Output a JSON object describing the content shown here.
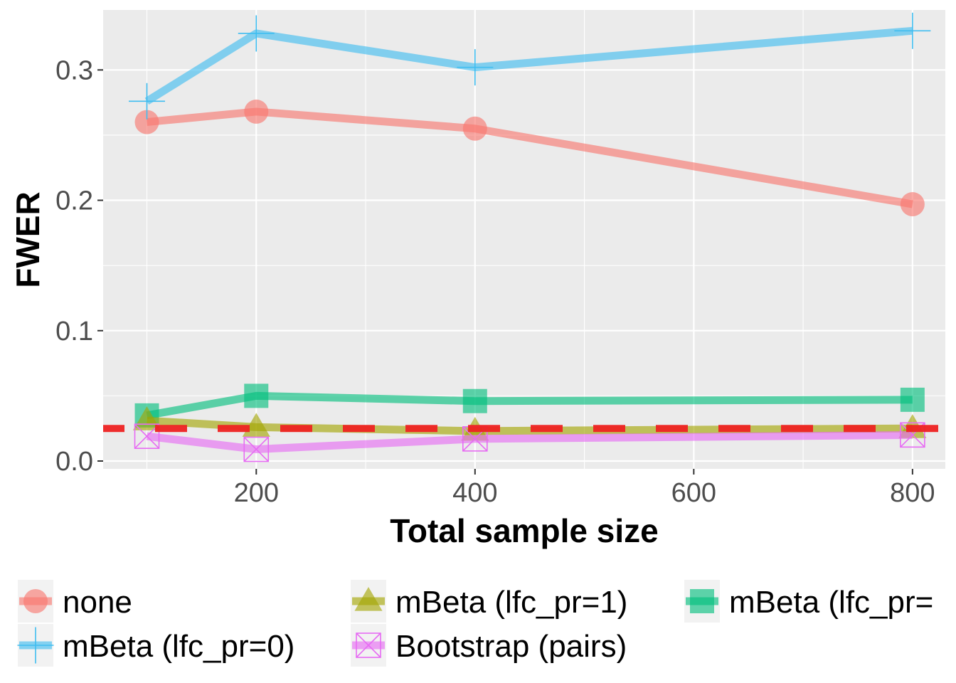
{
  "chart_data": {
    "type": "line",
    "title": "",
    "xlabel": "Total sample size",
    "ylabel": "FWER",
    "x": [
      100,
      200,
      400,
      800
    ],
    "x_ticks": [
      "200",
      "400",
      "600",
      "800"
    ],
    "x_tick_values": [
      200,
      400,
      600,
      800
    ],
    "y_ticks": [
      "0.0",
      "0.1",
      "0.2",
      "0.3"
    ],
    "y_tick_values": [
      0.0,
      0.1,
      0.2,
      0.3
    ],
    "xlim": [
      60,
      830
    ],
    "ylim": [
      -0.006,
      0.346
    ],
    "grid": true,
    "legend_position": "bottom",
    "reference_line": {
      "y": 0.025,
      "color": "#ee2222",
      "style": "dashed"
    },
    "series": [
      {
        "name": "none",
        "color": "#f8766d",
        "marker": "circle",
        "values": [
          0.26,
          0.268,
          0.255,
          0.197
        ]
      },
      {
        "name": "mBeta (lfc_pr=0)",
        "color": "#3fbdf0",
        "marker": "plus",
        "values": [
          0.276,
          0.328,
          0.302,
          0.33
        ]
      },
      {
        "name": "mBeta (lfc_pr=1)",
        "color": "#a3a500",
        "marker": "triangle",
        "values": [
          0.031,
          0.026,
          0.023,
          0.025
        ]
      },
      {
        "name": "Bootstrap (pairs)",
        "color": "#e76bf3",
        "marker": "boxcross",
        "values": [
          0.019,
          0.009,
          0.017,
          0.02
        ]
      },
      {
        "name": "mBeta (lfc_pr=",
        "color": "#00bf7d",
        "marker": "square",
        "values": [
          0.035,
          0.05,
          0.046,
          0.047
        ]
      }
    ]
  }
}
